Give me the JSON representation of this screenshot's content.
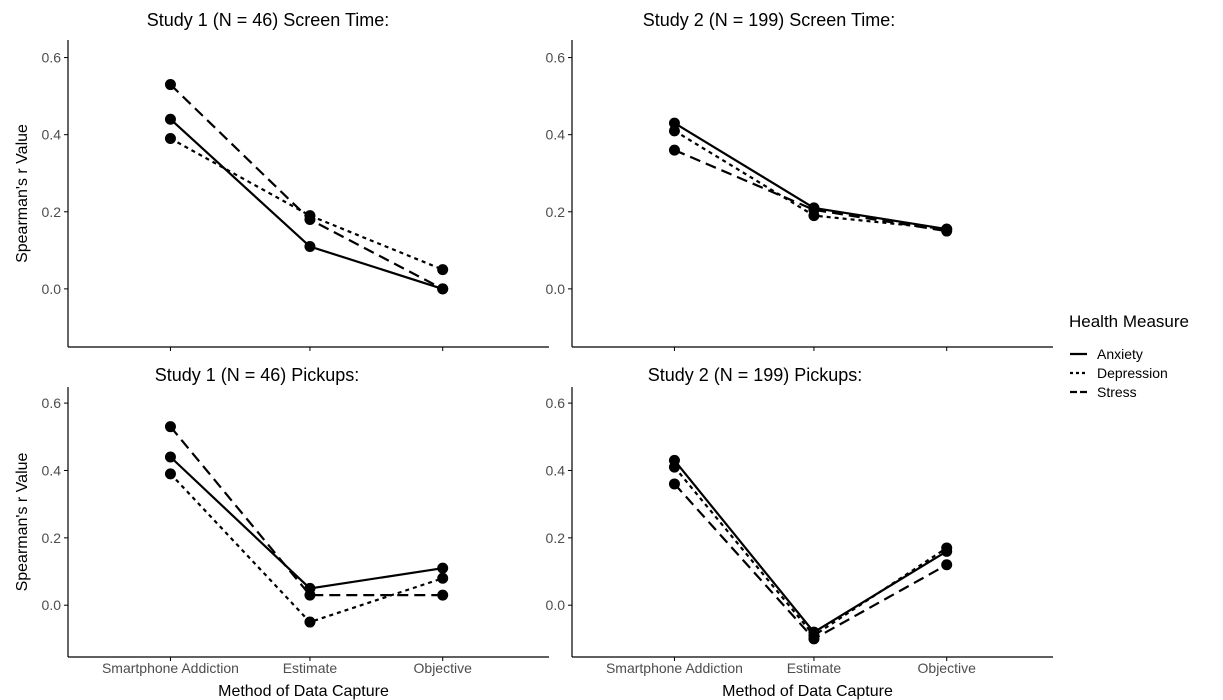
{
  "chart_data": {
    "type": "line",
    "legend": {
      "title": "Health Measure",
      "placement": "right",
      "entries": [
        {
          "name": "Anxiety",
          "linetype": "solid"
        },
        {
          "name": "Depression",
          "linetype": "dotted"
        },
        {
          "name": "Stress",
          "linetype": "dashed"
        }
      ]
    },
    "xlabel": "Method of Data Capture",
    "ylabel": "Spearman's r Value",
    "categories": [
      "Smartphone Addiction",
      "Estimate",
      "Objective"
    ],
    "ylim": [
      -0.13,
      0.63
    ],
    "yticks": [
      0.0,
      0.2,
      0.4,
      0.6
    ],
    "ytick_labels": [
      "0.0",
      "0.2",
      "0.4",
      "0.6"
    ],
    "grid": false,
    "colors": {
      "line": "#000000",
      "axis": "#000000",
      "tick_text": "#4d4d4d",
      "background": "#ffffff"
    },
    "panels": [
      {
        "title": "Study 1 (N = 46) Screen Time:",
        "series": [
          {
            "name": "Anxiety",
            "values": [
              0.44,
              0.11,
              0.0
            ]
          },
          {
            "name": "Depression",
            "values": [
              0.39,
              0.19,
              0.05
            ]
          },
          {
            "name": "Stress",
            "values": [
              0.53,
              0.18,
              0.0
            ]
          }
        ]
      },
      {
        "title": "Study 2 (N = 199) Screen Time:",
        "series": [
          {
            "name": "Anxiety",
            "values": [
              0.43,
              0.21,
              0.155
            ]
          },
          {
            "name": "Depression",
            "values": [
              0.41,
              0.19,
              0.155
            ]
          },
          {
            "name": "Stress",
            "values": [
              0.36,
              0.205,
              0.15
            ]
          }
        ]
      },
      {
        "title": "Study 1 (N = 46) Pickups:",
        "series": [
          {
            "name": "Anxiety",
            "values": [
              0.44,
              0.05,
              0.11
            ]
          },
          {
            "name": "Depression",
            "values": [
              0.39,
              -0.05,
              0.08
            ]
          },
          {
            "name": "Stress",
            "values": [
              0.53,
              0.03,
              0.03
            ]
          }
        ]
      },
      {
        "title": "Study 2 (N = 199) Pickups:",
        "series": [
          {
            "name": "Anxiety",
            "values": [
              0.43,
              -0.08,
              0.16
            ]
          },
          {
            "name": "Depression",
            "values": [
              0.41,
              -0.09,
              0.17
            ]
          },
          {
            "name": "Stress",
            "values": [
              0.36,
              -0.1,
              0.12
            ]
          }
        ]
      }
    ]
  }
}
